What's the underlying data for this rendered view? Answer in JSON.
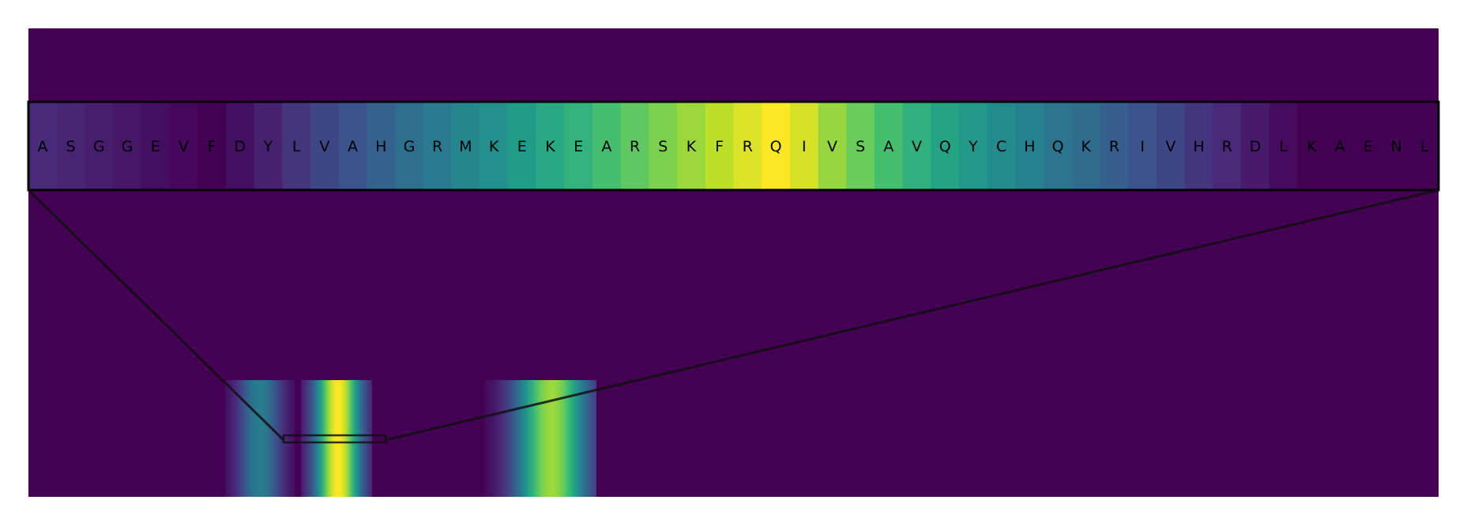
{
  "chart_data": {
    "type": "heatmap",
    "colormap": "viridis",
    "axes_visible": false,
    "sequence_values": [
      0.12,
      0.1,
      0.08,
      0.06,
      0.04,
      0.02,
      0.0,
      0.04,
      0.09,
      0.15,
      0.21,
      0.26,
      0.31,
      0.36,
      0.41,
      0.46,
      0.5,
      0.55,
      0.6,
      0.65,
      0.7,
      0.75,
      0.8,
      0.85,
      0.9,
      0.95,
      1.0,
      0.94,
      0.84,
      0.77,
      0.7,
      0.64,
      0.58,
      0.53,
      0.48,
      0.44,
      0.39,
      0.35,
      0.3,
      0.26,
      0.21,
      0.15,
      0.11,
      0.07,
      0.03,
      0.0,
      0.0,
      0.0,
      0.0,
      0.0
    ],
    "overview_bands": [
      {
        "start_residue": 0,
        "end_residue": 88,
        "peak": 0.42,
        "peak_offset": 0.5
      },
      {
        "start_residue": 96,
        "end_residue": 186,
        "peak": 1.0,
        "peak_offset": 0.52
      },
      {
        "start_residue": 328,
        "end_residue": 470,
        "peak": 0.85,
        "peak_offset": 0.6
      }
    ],
    "zoom_window": {
      "start_residue": 74,
      "end_residue": 203
    }
  },
  "sequence": {
    "residues": [
      "A",
      "S",
      "G",
      "G",
      "E",
      "V",
      "F",
      "D",
      "Y",
      "L",
      "V",
      "A",
      "H",
      "G",
      "R",
      "M",
      "K",
      "E",
      "K",
      "E",
      "A",
      "R",
      "S",
      "K",
      "F",
      "R",
      "Q",
      "I",
      "V",
      "S",
      "A",
      "V",
      "Q",
      "Y",
      "C",
      "H",
      "Q",
      "K",
      "R",
      "I",
      "V",
      "H",
      "R",
      "D",
      "L",
      "K",
      "A",
      "E",
      "N",
      "L"
    ]
  }
}
